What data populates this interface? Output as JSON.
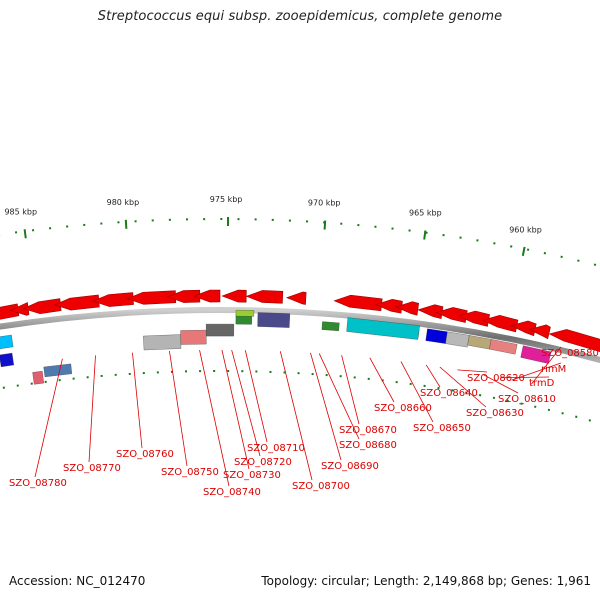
{
  "title": "Streptococcus equi subsp. zooepidemicus, complete genome",
  "footer": {
    "accession": "Accession: NC_012470",
    "topology": "Topology: circular; Length: 2,149,868 bp; Genes: 1,961"
  },
  "colors": {
    "backbone": "#8c8c8c",
    "tick": "#1a7a1a",
    "label": "#dd0000",
    "leader": "#dd0000",
    "scale_text": "#222222",
    "gene_forward": "#ee0000",
    "gene_reverse": "#ee0000"
  },
  "scale_labels": [
    "985 kbp",
    "980 kbp",
    "975 kbp",
    "970 kbp",
    "965 kbp",
    "960 kbp"
  ],
  "gene_labels": [
    "SZO_08580",
    "rimM",
    "trmD",
    "SZO_08610",
    "SZO_08620",
    "SZO_08630",
    "SZO_08640",
    "SZO_08650",
    "SZO_08660",
    "SZO_08670",
    "SZO_08680",
    "SZO_08690",
    "SZO_08700",
    "SZO_08710",
    "SZO_08720",
    "SZO_08730",
    "SZO_08740",
    "SZO_08750",
    "SZO_08760",
    "SZO_08770",
    "SZO_08780"
  ],
  "feature_colors": [
    "#00bfff",
    "#1010cc",
    "#e06070",
    "#4d7bb0",
    "#b4b4b4",
    "#e87878",
    "#666666",
    "#2e8b2e",
    "#9acd32",
    "#4a4a8a",
    "#ff8c00",
    "#2e8b2e",
    "#00c0c8",
    "#0000dd",
    "#b8b8b8",
    "#b8a878",
    "#e88080",
    "#e0209a"
  ]
}
